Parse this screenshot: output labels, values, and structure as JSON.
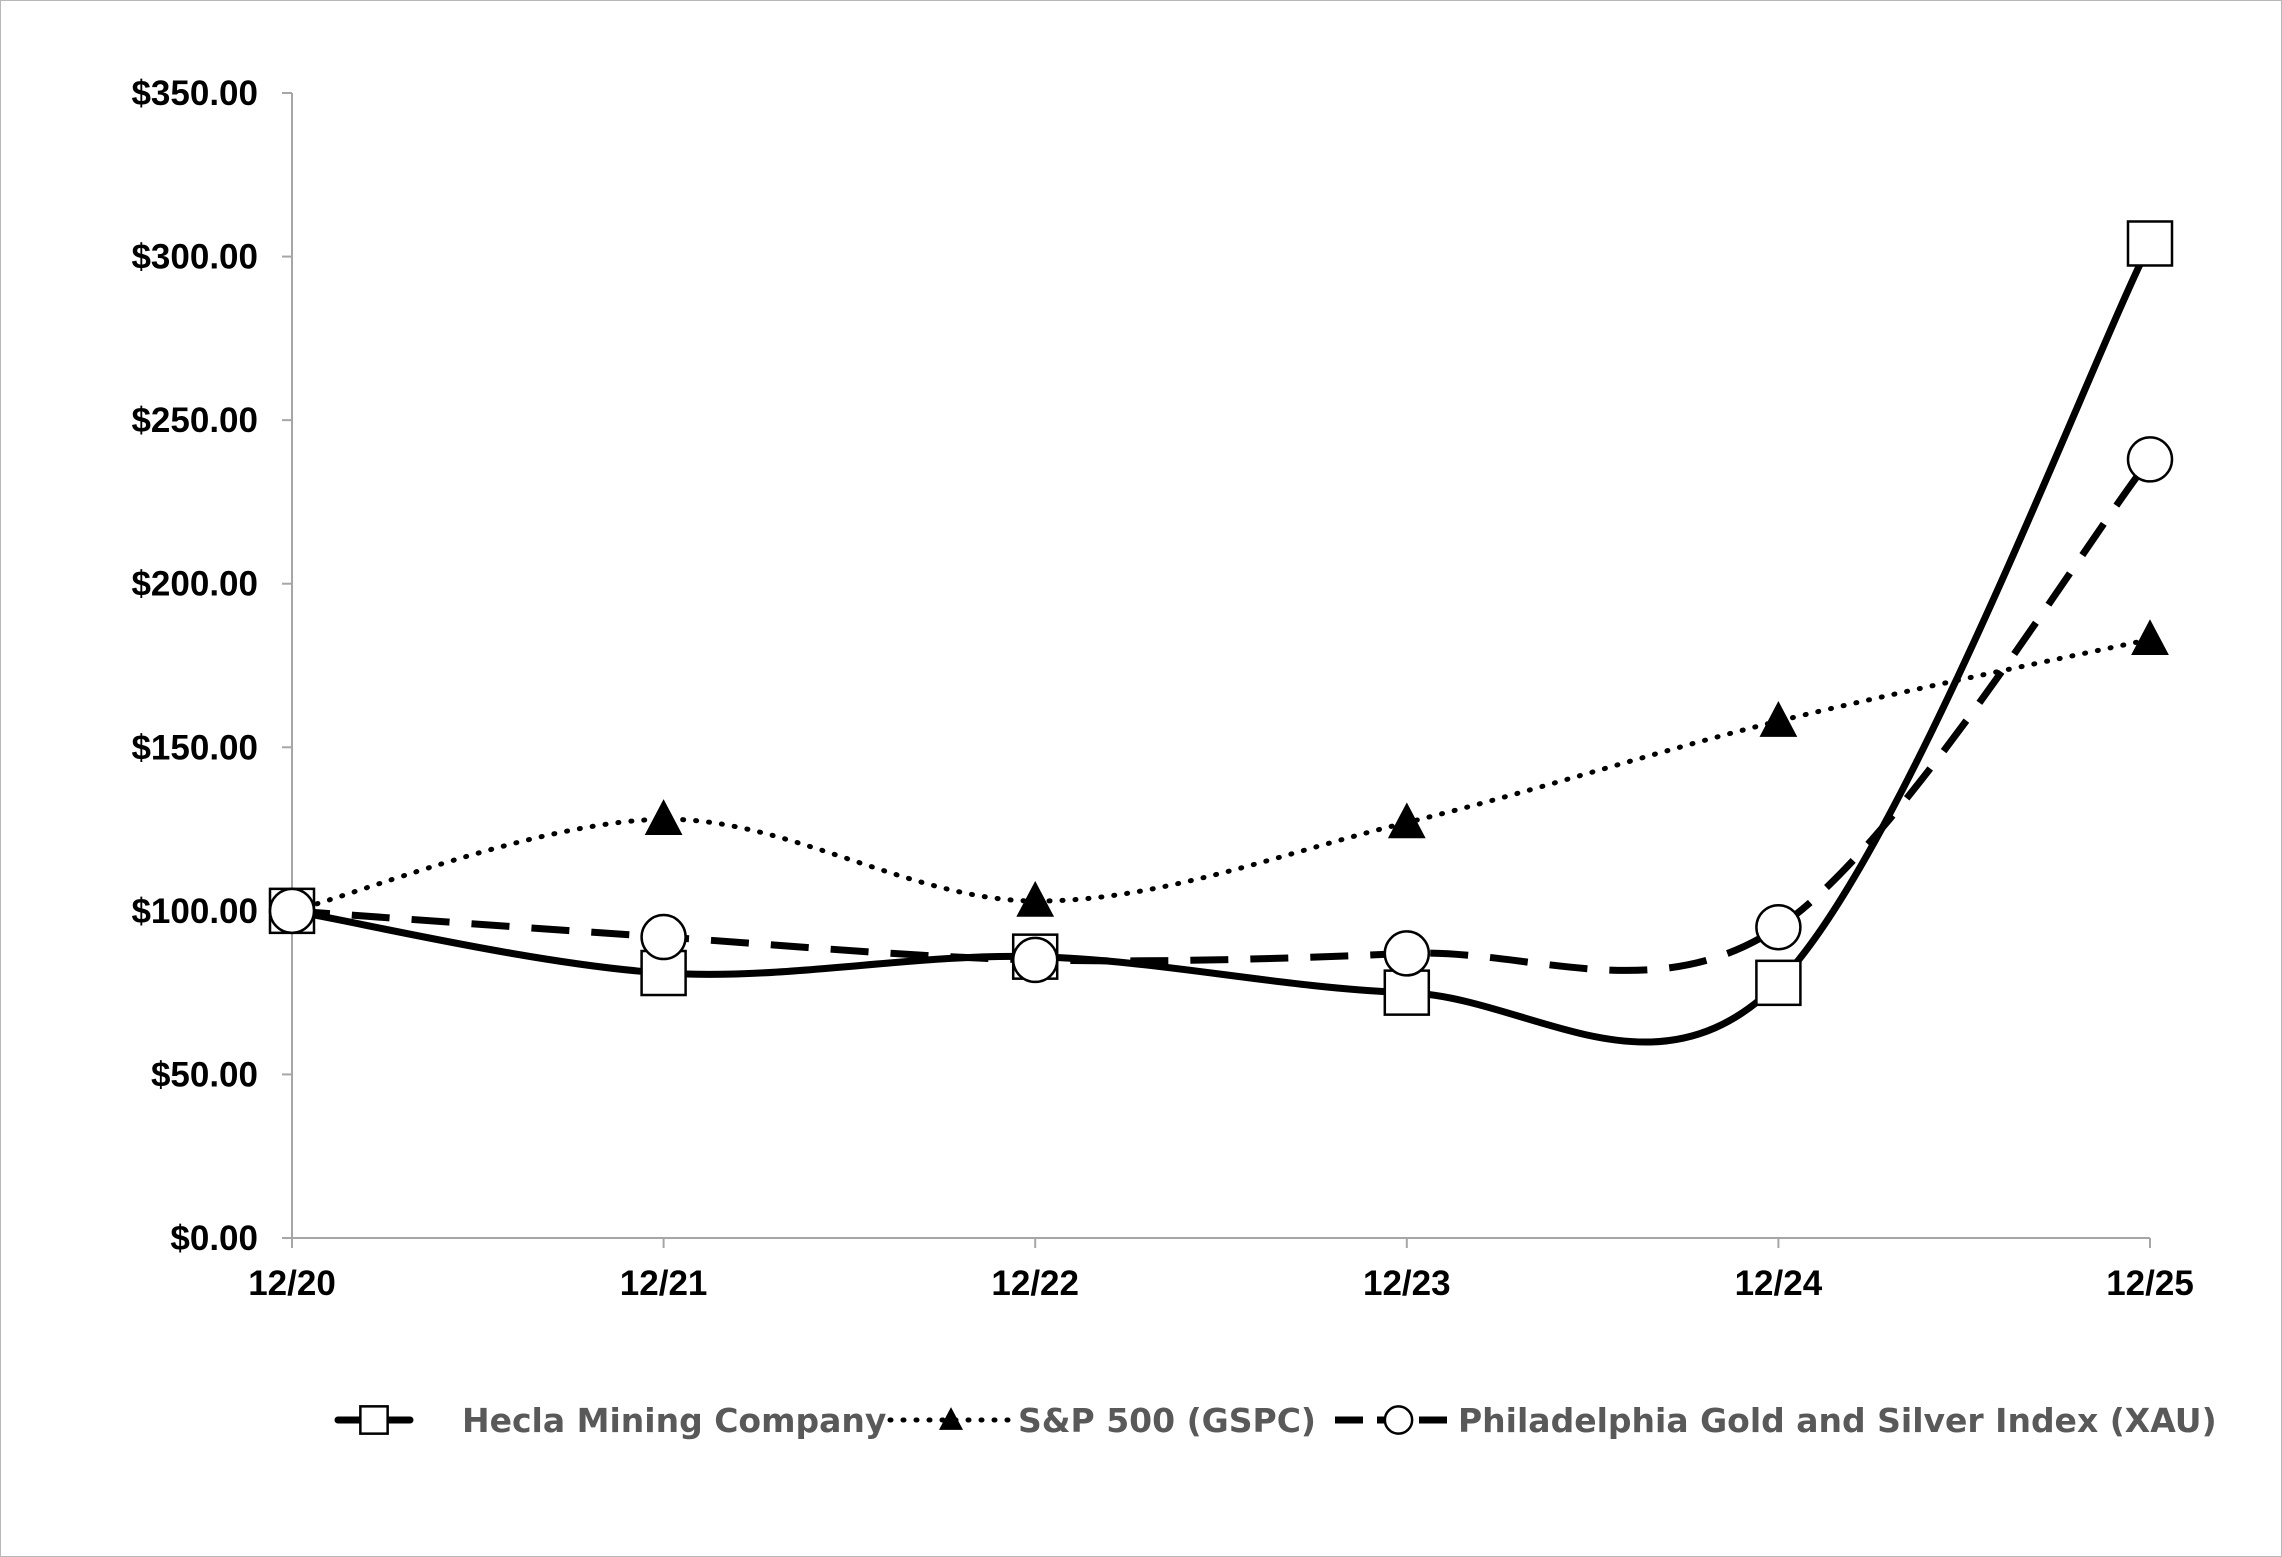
{
  "chart_data": {
    "type": "line",
    "categories": [
      "12/20",
      "12/21",
      "12/22",
      "12/23",
      "12/24",
      "12/25"
    ],
    "y_tick_labels": [
      "$0.00",
      "$50.00",
      "$100.00",
      "$150.00",
      "$200.00",
      "$250.00",
      "$300.00",
      "$350.00"
    ],
    "y_ticks": [
      0,
      50,
      100,
      150,
      200,
      250,
      300,
      350
    ],
    "ylim": [
      0,
      350
    ],
    "grid": false,
    "legend_position": "bottom",
    "series": [
      {
        "name": "Hecla Mining Company",
        "values": [
          100,
          81,
          86,
          75,
          78,
          304
        ],
        "marker": "square",
        "line_style": "solid",
        "color": "#000000"
      },
      {
        "name": "S&P 500 (GSPC)",
        "values": [
          100,
          128,
          103,
          127,
          158,
          183
        ],
        "marker": "triangle",
        "line_style": "dotted",
        "color": "#000000"
      },
      {
        "name": "Philadelphia Gold and Silver Index (XAU)",
        "values": [
          100,
          92,
          85,
          87,
          95,
          238
        ],
        "marker": "circle",
        "line_style": "dashed",
        "color": "#000000"
      }
    ]
  }
}
